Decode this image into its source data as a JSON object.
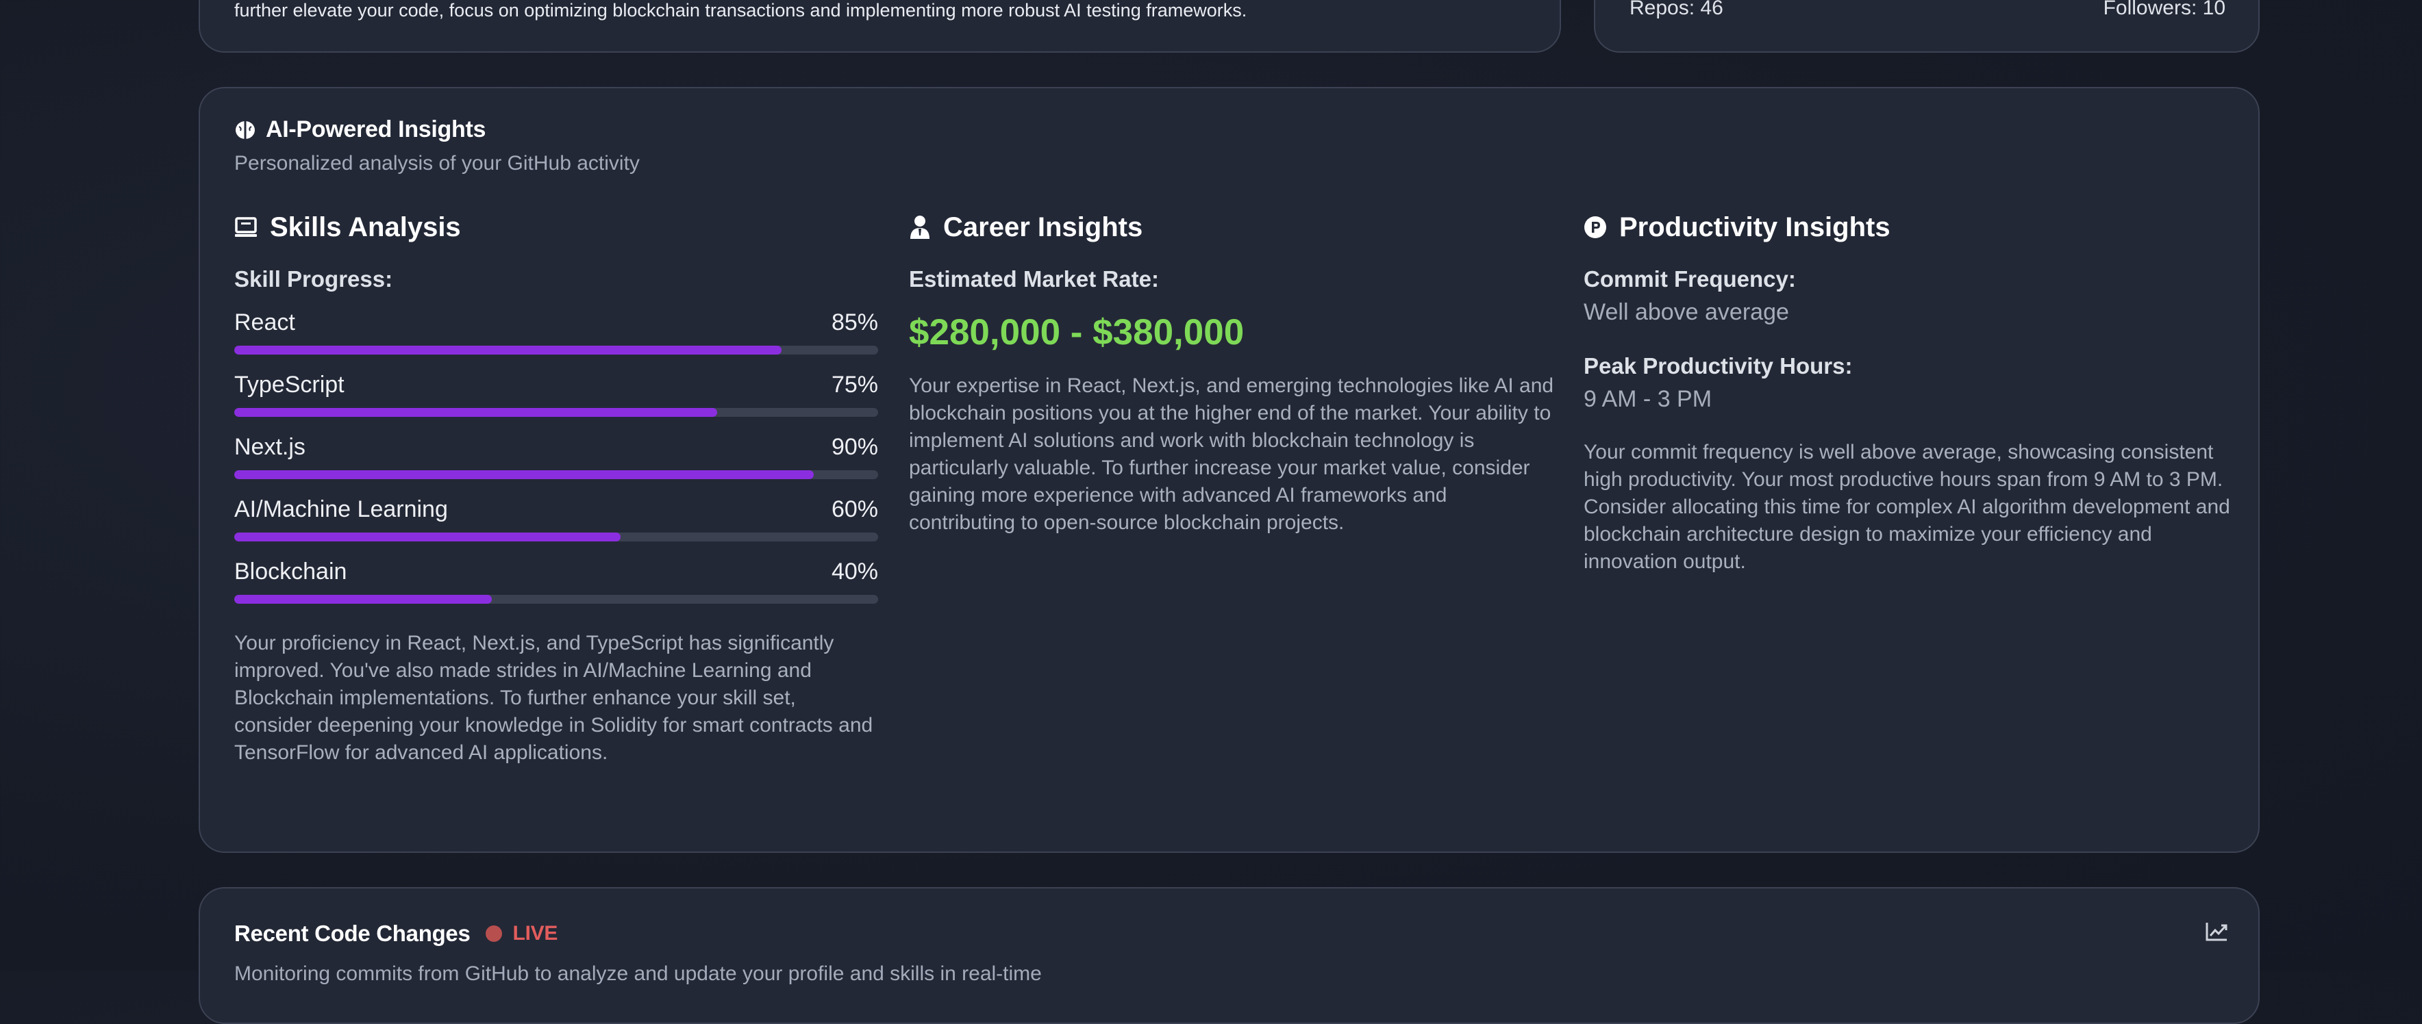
{
  "top_left_card": {
    "text": "further elevate your code, focus on optimizing blockchain transactions and implementing more robust AI testing frameworks."
  },
  "top_right_card": {
    "repos": "Repos: 46",
    "followers": "Followers: 10"
  },
  "insights": {
    "icon": "brain-icon",
    "title": "AI-Powered Insights",
    "subtitle": "Personalized analysis of your GitHub activity",
    "skills": {
      "icon": "laptop-icon",
      "title": "Skills Analysis",
      "progress_label": "Skill Progress:",
      "items": [
        {
          "name": "React",
          "percent_label": "85%",
          "value": 85
        },
        {
          "name": "TypeScript",
          "percent_label": "75%",
          "value": 75
        },
        {
          "name": "Next.js",
          "percent_label": "90%",
          "value": 90
        },
        {
          "name": "AI/Machine Learning",
          "percent_label": "60%",
          "value": 60
        },
        {
          "name": "Blockchain",
          "percent_label": "40%",
          "value": 40
        }
      ],
      "bar_color": "#8b2ee0",
      "summary": "Your proficiency in React, Next.js, and TypeScript has significantly improved. You've also made strides in AI/Machine Learning and Blockchain implementations. To further enhance your skill set, consider deepening your knowledge in Solidity for smart contracts and TensorFlow for advanced AI applications."
    },
    "career": {
      "icon": "user-tie-icon",
      "title": "Career Insights",
      "market_label": "Estimated Market Rate:",
      "market_rate": "$280,000 - $380,000",
      "rate_color": "#7ed957",
      "summary": "Your expertise in React, Next.js, and emerging technologies like AI and blockchain positions you at the higher end of the market. Your ability to implement AI solutions and work with blockchain technology is particularly valuable. To further increase your market value, consider gaining more experience with advanced AI frameworks and contributing to open-source blockchain projects."
    },
    "productivity": {
      "icon": "productivity-p-icon",
      "title": "Productivity Insights",
      "commit_label": "Commit Frequency:",
      "commit_value": "Well above average",
      "peak_label": "Peak Productivity Hours:",
      "peak_value": "9 AM - 3 PM",
      "summary": "Your commit frequency is well above average, showcasing consistent high productivity. Your most productive hours span from 9 AM to 3 PM. Consider allocating this time for complex AI algorithm development and blockchain architecture design to maximize your efficiency and innovation output."
    }
  },
  "recent_changes": {
    "title": "Recent Code Changes",
    "live_label": "LIVE",
    "subtitle": "Monitoring commits from GitHub to analyze and update your profile and skills in real-time",
    "icon": "line-chart-icon"
  }
}
